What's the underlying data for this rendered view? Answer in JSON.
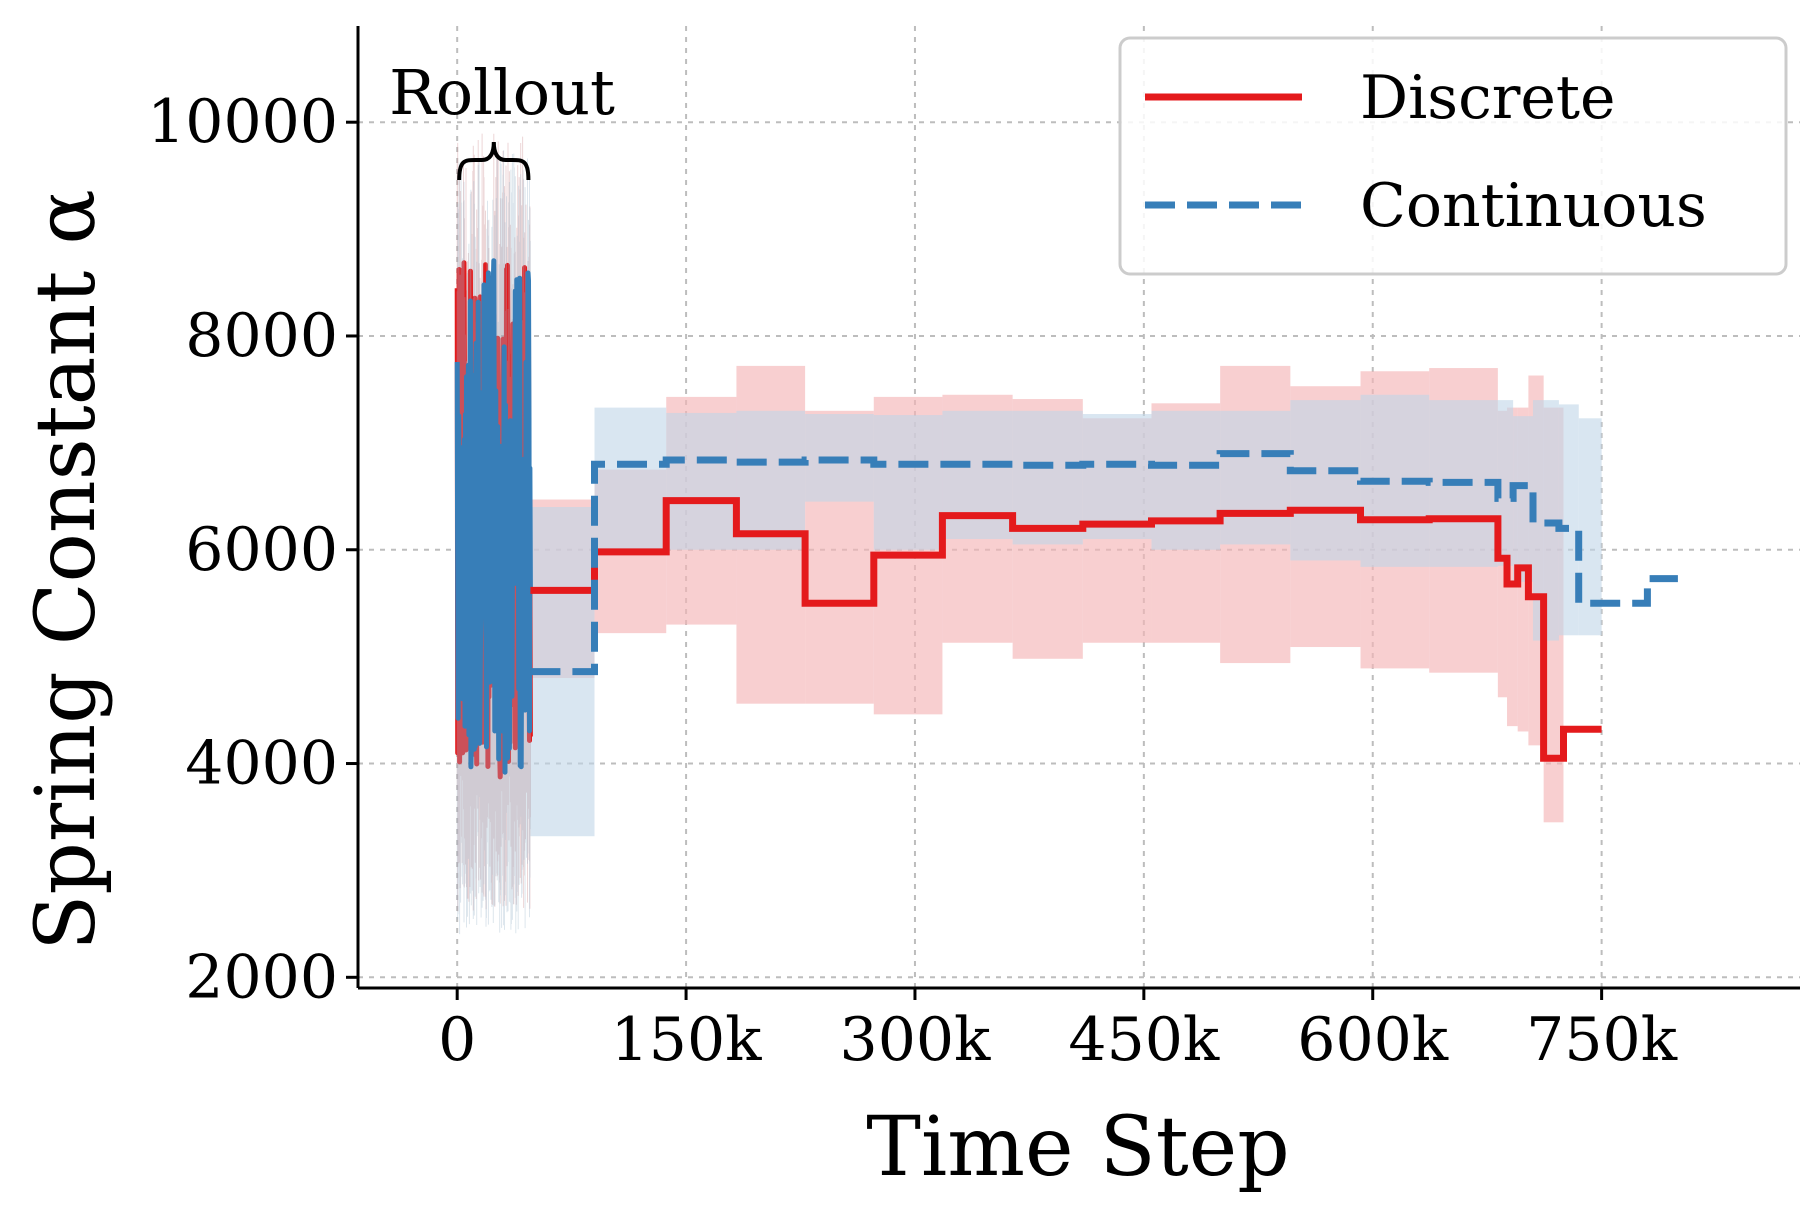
{
  "chart_data": {
    "type": "line",
    "xlabel": "Time Step",
    "ylabel": "Spring Constant α",
    "xlim": [
      -65000,
      880000
    ],
    "ylim": [
      1900,
      10900
    ],
    "x_ticks": [
      0,
      150000,
      300000,
      450000,
      600000,
      750000
    ],
    "x_tick_labels": [
      "0",
      "150k",
      "300k",
      "450k",
      "600k",
      "750k"
    ],
    "y_ticks": [
      2000,
      4000,
      6000,
      8000,
      10000
    ],
    "y_tick_labels": [
      "2000",
      "4000",
      "6000",
      "8000",
      "10000"
    ],
    "grid": true,
    "legend_position": "upper right",
    "annotation": {
      "text": "Rollout",
      "x_range": [
        0,
        48000
      ]
    },
    "colors": {
      "discrete": "#e41a1c",
      "discrete_band": "#f4b6b7",
      "continuous": "#377eb8",
      "continuous_band": "#c0d5e8"
    },
    "series": [
      {
        "name": "Discrete",
        "style": "solid",
        "rollout": {
          "x_range": [
            0,
            48000
          ],
          "min": 3850,
          "max": 8700,
          "band": [
            2600,
            9900
          ]
        },
        "x": [
          48000,
          90000,
          137000,
          183000,
          228000,
          273000,
          318000,
          364000,
          410000,
          455000,
          500000,
          546000,
          592000,
          637000,
          682000,
          688000,
          695000,
          702000,
          712000,
          725000,
          735000,
          750000
        ],
        "y": [
          5620,
          5980,
          6460,
          6150,
          5500,
          5950,
          6320,
          6200,
          6240,
          6270,
          6340,
          6370,
          6280,
          6290,
          5920,
          5680,
          5830,
          5560,
          4050,
          4320,
          4320,
          4320
        ],
        "band_low": [
          4800,
          5220,
          5300,
          4560,
          4560,
          4460,
          5130,
          4980,
          5130,
          5130,
          4940,
          5090,
          4890,
          4850,
          4620,
          4350,
          4300,
          4170,
          3450,
          4300,
          4300,
          4300
        ],
        "band_high": [
          6470,
          6750,
          7430,
          7720,
          7300,
          7430,
          7450,
          7410,
          7230,
          7370,
          7720,
          7530,
          7670,
          7700,
          7300,
          7330,
          7330,
          7630,
          7330,
          4320,
          4320,
          4320
        ]
      },
      {
        "name": "Continuous",
        "style": "dashed",
        "rollout": {
          "x_range": [
            0,
            48000
          ],
          "min": 3880,
          "max": 8720,
          "band": [
            2400,
            9800
          ]
        },
        "x": [
          48000,
          90000,
          137000,
          183000,
          228000,
          273000,
          318000,
          364000,
          410000,
          455000,
          500000,
          546000,
          592000,
          637000,
          682000,
          692000,
          705000,
          722000,
          735000,
          750000,
          780000,
          800000
        ],
        "y": [
          4860,
          6800,
          6840,
          6820,
          6840,
          6800,
          6800,
          6790,
          6800,
          6790,
          6900,
          6740,
          6640,
          6630,
          6480,
          6600,
          6250,
          6200,
          5500,
          5500,
          5730,
          5730
        ],
        "band_low": [
          3320,
          6000,
          6000,
          6000,
          6450,
          6000,
          6100,
          6050,
          6100,
          6000,
          6050,
          5900,
          5840,
          5840,
          5850,
          5700,
          5150,
          5200,
          5200,
          5500,
          5730,
          5730
        ],
        "band_high": [
          6400,
          7330,
          7280,
          7300,
          7270,
          7260,
          7300,
          7300,
          7270,
          7300,
          7300,
          7400,
          7450,
          7400,
          7400,
          7250,
          7400,
          7360,
          7230,
          5500,
          5730,
          5730
        ]
      }
    ]
  }
}
